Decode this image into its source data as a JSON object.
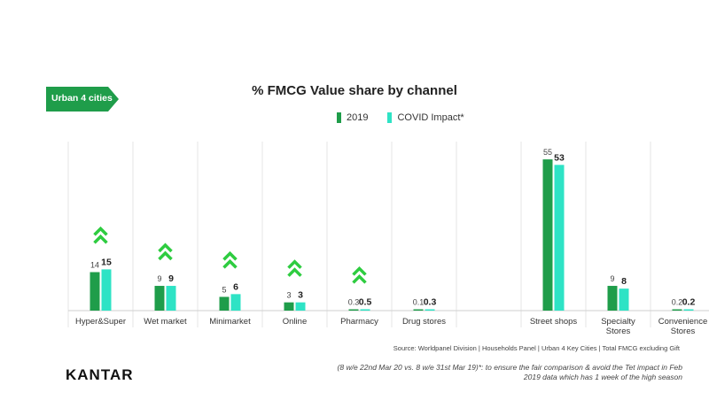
{
  "tag": {
    "label": "Urban 4 cities"
  },
  "chart_data": {
    "type": "bar",
    "title": "% FMCG Value share by channel",
    "categories": [
      "Hyper&Super",
      "Wet market",
      "Minimarket",
      "Online",
      "Pharmacy",
      "Drug stores",
      "",
      "Street shops",
      "Specialty Stores",
      "Convenience Stores"
    ],
    "series": [
      {
        "name": "2019",
        "color": "#1f9d4a",
        "values": [
          14,
          9,
          5,
          3,
          0.3,
          0.1,
          null,
          55,
          9,
          0.2
        ]
      },
      {
        "name": "COVID Impact*",
        "color": "#2ee3c5",
        "values": [
          15,
          9,
          6,
          3,
          0.5,
          0.3,
          null,
          53,
          8,
          0.2
        ]
      }
    ],
    "growth_arrows": [
      true,
      true,
      true,
      true,
      true,
      false,
      false,
      false,
      false,
      false
    ],
    "arrow_color": "#2ecc40",
    "ylim": [
      0,
      56
    ],
    "grid": "vertical separators",
    "legend": "top-center"
  },
  "source": "Source: Worldpanel Division | Households Panel | Urban 4 Key Cities | Total FMCG excluding Gift",
  "brand": "KANTAR",
  "footnote": {
    "line1": "(8 w/e 22nd Mar 20 vs. 8 w/e 31st Mar 19)*: to ensure the fair comparison & avoid the Tet impact in Feb",
    "line2": "2019 data which has 1 week of  the high season"
  },
  "colors": {
    "tag": "#1f9d4a"
  }
}
